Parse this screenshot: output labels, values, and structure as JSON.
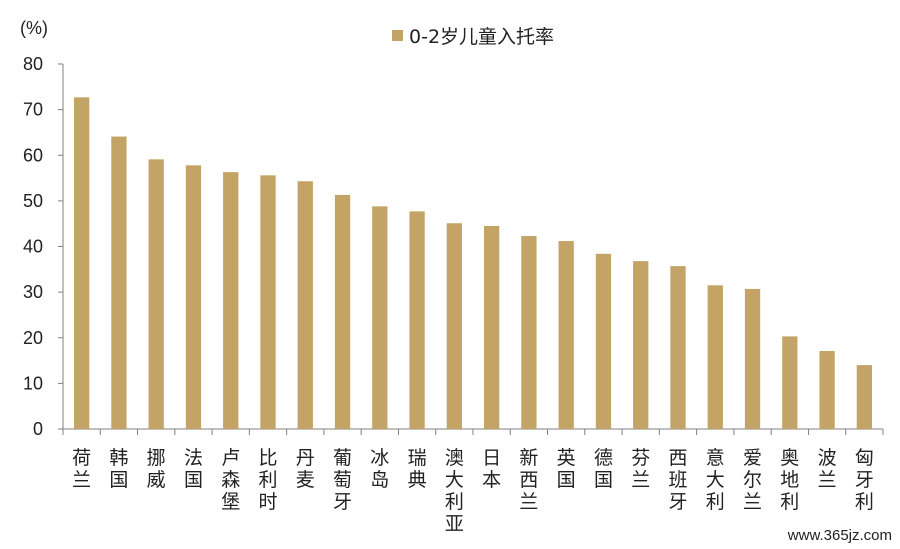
{
  "chart_data": {
    "type": "bar",
    "unit_label": "(%)",
    "categories": [
      "荷兰",
      "韩国",
      "挪威",
      "法国",
      "卢森堡",
      "比利时",
      "丹麦",
      "葡萄牙",
      "冰岛",
      "瑞典",
      "澳大利亚",
      "日本",
      "新西兰",
      "英国",
      "德国",
      "芬兰",
      "西班牙",
      "意大利",
      "爱尔兰",
      "奥地利",
      "波兰",
      "匈牙利"
    ],
    "series": [
      {
        "name": "0-2岁儿童入托率",
        "color": "#C4A466",
        "values": [
          72.7,
          64.1,
          59.1,
          57.8,
          56.3,
          55.6,
          54.3,
          51.3,
          48.8,
          47.7,
          45.1,
          44.5,
          42.3,
          41.2,
          38.4,
          36.8,
          35.7,
          31.5,
          30.7,
          20.3,
          17.1,
          14.0
        ]
      }
    ],
    "ylim": [
      0,
      80
    ],
    "yticks": [
      0,
      10,
      20,
      30,
      40,
      50,
      60,
      70,
      80
    ],
    "grid": false,
    "legend_position": "top-center"
  },
  "watermark": "www.365jz.com"
}
